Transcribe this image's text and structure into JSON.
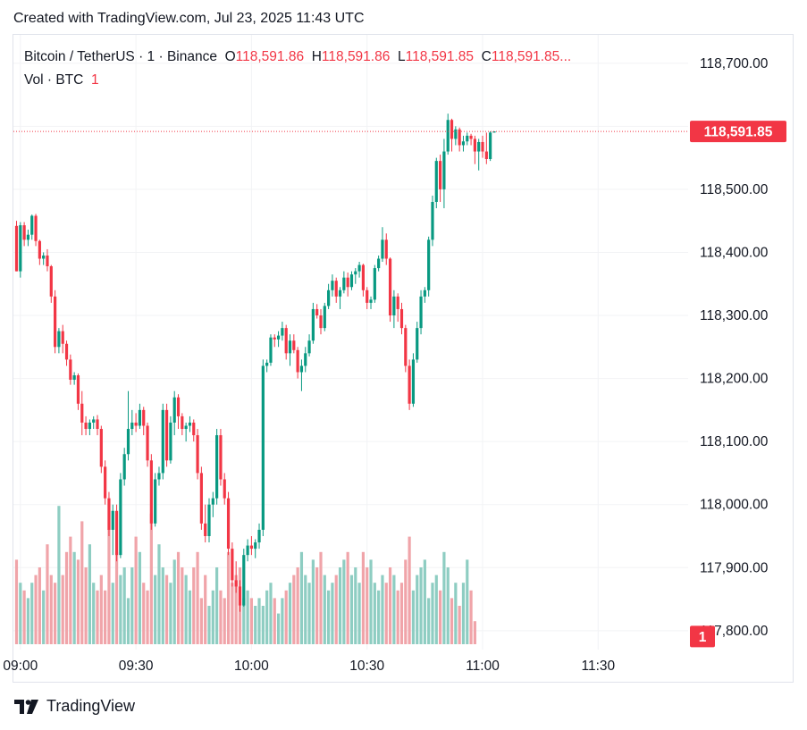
{
  "header": {
    "created_text": "Created with TradingView.com, Jul 23, 2025 11:43 UTC"
  },
  "legend": {
    "symbol": "Bitcoin / TetherUS · 1 · Binance",
    "o_label": "O",
    "o_value": "118,591.86",
    "h_label": "H",
    "h_value": "118,591.86",
    "l_label": "L",
    "l_value": "118,591.85",
    "c_label": "C",
    "c_value": "118,591.85...",
    "vol_label": "Vol · BTC",
    "vol_value": "1"
  },
  "footer": {
    "brand": "TradingView",
    "logo_icon": "tradingview-logo-icon"
  },
  "colors": {
    "up": "#089981",
    "down": "#f23645",
    "up_volume": "#8ecdc2",
    "down_volume": "#f0a4a9",
    "grid": "#f2f3f5"
  },
  "chart_data": {
    "type": "candlestick",
    "price_axis": {
      "ylim": [
        117770,
        118745
      ],
      "ticks": [
        117800,
        117900,
        118000,
        118100,
        118200,
        118300,
        118400,
        118500,
        118600,
        118700
      ],
      "tick_labels": [
        "117,800.00",
        "117,900.00",
        "118,000.00",
        "118,100.00",
        "118,200.00",
        "118,300.00",
        "118,400.00",
        "118,500.00",
        "118,600.00",
        "118,700.00"
      ]
    },
    "time_axis": {
      "start": "08:59",
      "ticks": [
        "09:00",
        "09:30",
        "10:00",
        "10:30",
        "11:00",
        "11:30"
      ]
    },
    "last_price": {
      "value": 118591.85,
      "label": "118,591.85"
    },
    "last_volume": {
      "value": 1,
      "label": "1"
    },
    "candles": [
      [
        118442,
        118450,
        118370,
        118370
      ],
      [
        118370,
        118448,
        118360,
        118443
      ],
      [
        118443,
        118448,
        118410,
        118420
      ],
      [
        118420,
        118436,
        118410,
        118428
      ],
      [
        118428,
        118460,
        118420,
        118458
      ],
      [
        118458,
        118461,
        118410,
        118418
      ],
      [
        118418,
        118420,
        118380,
        118390
      ],
      [
        118390,
        118400,
        118380,
        118395
      ],
      [
        118395,
        118405,
        118370,
        118378
      ],
      [
        118378,
        118380,
        118320,
        118330
      ],
      [
        118330,
        118340,
        118240,
        118250
      ],
      [
        118250,
        118280,
        118240,
        118275
      ],
      [
        118275,
        118285,
        118240,
        118255
      ],
      [
        118255,
        118260,
        118220,
        118230
      ],
      [
        118230,
        118238,
        118190,
        118198
      ],
      [
        118198,
        118210,
        118190,
        118205
      ],
      [
        118205,
        118208,
        118150,
        118160
      ],
      [
        118160,
        118180,
        118110,
        118130
      ],
      [
        118130,
        118140,
        118110,
        118120
      ],
      [
        118120,
        118135,
        118110,
        118130
      ],
      [
        118130,
        118140,
        118120,
        118135
      ],
      [
        118135,
        118142,
        118110,
        118120
      ],
      [
        118120,
        118125,
        118050,
        118060
      ],
      [
        118060,
        118070,
        118000,
        118010
      ],
      [
        118010,
        118020,
        117950,
        117960
      ],
      [
        117960,
        118000,
        117920,
        117990
      ],
      [
        117990,
        118000,
        117910,
        117920
      ],
      [
        117920,
        118050,
        117915,
        118040
      ],
      [
        118040,
        118090,
        118030,
        118080
      ],
      [
        118080,
        118180,
        118070,
        118120
      ],
      [
        118120,
        118150,
        118110,
        118130
      ],
      [
        118130,
        118145,
        118115,
        118125
      ],
      [
        118125,
        118160,
        118120,
        118150
      ],
      [
        118150,
        118155,
        118110,
        118125
      ],
      [
        118125,
        118130,
        118060,
        118070
      ],
      [
        118070,
        118080,
        117960,
        117970
      ],
      [
        117970,
        118050,
        117965,
        118040
      ],
      [
        118040,
        118060,
        118030,
        118050
      ],
      [
        118050,
        118160,
        118040,
        118150
      ],
      [
        118150,
        118160,
        118060,
        118070
      ],
      [
        118070,
        118140,
        118065,
        118130
      ],
      [
        118130,
        118180,
        118110,
        118170
      ],
      [
        118170,
        118175,
        118120,
        118140
      ],
      [
        118140,
        118145,
        118110,
        118120
      ],
      [
        118120,
        118130,
        118100,
        118125
      ],
      [
        118125,
        118140,
        118115,
        118130
      ],
      [
        118130,
        118135,
        118100,
        118110
      ],
      [
        118110,
        118120,
        118040,
        118050
      ],
      [
        118050,
        118060,
        117960,
        117970
      ],
      [
        117970,
        118000,
        117940,
        117950
      ],
      [
        117950,
        118010,
        117940,
        118000
      ],
      [
        118000,
        118020,
        117980,
        118010
      ],
      [
        118010,
        118120,
        118000,
        118110
      ],
      [
        118110,
        118120,
        118030,
        118040
      ],
      [
        118040,
        118050,
        118000,
        118010
      ],
      [
        118010,
        118020,
        117920,
        117930
      ],
      [
        117930,
        117940,
        117870,
        117880
      ],
      [
        117880,
        117910,
        117860,
        117870
      ],
      [
        117870,
        117880,
        117830,
        117840
      ],
      [
        117840,
        117930,
        117838,
        117920
      ],
      [
        117920,
        117945,
        117910,
        117935
      ],
      [
        117935,
        117950,
        117920,
        117930
      ],
      [
        117930,
        117945,
        117915,
        117940
      ],
      [
        117940,
        117970,
        117930,
        117960
      ],
      [
        117960,
        118230,
        117950,
        118220
      ],
      [
        118220,
        118230,
        118210,
        118225
      ],
      [
        118225,
        118270,
        118220,
        118265
      ],
      [
        118265,
        118270,
        118250,
        118262
      ],
      [
        118262,
        118275,
        118250,
        118268
      ],
      [
        118268,
        118290,
        118260,
        118280
      ],
      [
        118280,
        118285,
        118230,
        118240
      ],
      [
        118240,
        118270,
        118220,
        118260
      ],
      [
        118260,
        118270,
        118240,
        118245
      ],
      [
        118245,
        118250,
        118200,
        118210
      ],
      [
        118210,
        118230,
        118180,
        118220
      ],
      [
        118220,
        118250,
        118210,
        118240
      ],
      [
        118240,
        118270,
        118235,
        118260
      ],
      [
        118260,
        118320,
        118255,
        118310
      ],
      [
        118310,
        118318,
        118295,
        118300
      ],
      [
        118300,
        118310,
        118270,
        118280
      ],
      [
        118280,
        118320,
        118275,
        118315
      ],
      [
        118315,
        118350,
        118310,
        118340
      ],
      [
        118340,
        118365,
        118330,
        118355
      ],
      [
        118355,
        118360,
        118320,
        118330
      ],
      [
        118330,
        118345,
        118310,
        118340
      ],
      [
        118340,
        118370,
        118335,
        118360
      ],
      [
        118360,
        118368,
        118330,
        118345
      ],
      [
        118345,
        118370,
        118340,
        118365
      ],
      [
        118365,
        118375,
        118350,
        118370
      ],
      [
        118370,
        118385,
        118360,
        118380
      ],
      [
        118380,
        118382,
        118330,
        118340
      ],
      [
        118340,
        118345,
        118310,
        118320
      ],
      [
        118320,
        118330,
        118310,
        118325
      ],
      [
        118325,
        118380,
        118320,
        118375
      ],
      [
        118375,
        118395,
        118370,
        118390
      ],
      [
        118390,
        118440,
        118385,
        118420
      ],
      [
        118420,
        118430,
        118380,
        118390
      ],
      [
        118390,
        118392,
        118290,
        118300
      ],
      [
        118300,
        118340,
        118280,
        118330
      ],
      [
        118330,
        118335,
        118290,
        118310
      ],
      [
        118310,
        118320,
        118270,
        118280
      ],
      [
        118280,
        118285,
        118210,
        118220
      ],
      [
        118220,
        118230,
        118150,
        118160
      ],
      [
        118160,
        118240,
        118155,
        118230
      ],
      [
        118230,
        118290,
        118225,
        118280
      ],
      [
        118280,
        118340,
        118270,
        118330
      ],
      [
        118330,
        118345,
        118320,
        118340
      ],
      [
        118340,
        118425,
        118330,
        118420
      ],
      [
        118420,
        118490,
        118410,
        118480
      ],
      [
        118480,
        118550,
        118470,
        118545
      ],
      [
        118545,
        118555,
        118480,
        118500
      ],
      [
        118500,
        118580,
        118470,
        118560
      ],
      [
        118560,
        118620,
        118555,
        118610
      ],
      [
        118610,
        118612,
        118560,
        118580
      ],
      [
        118580,
        118600,
        118570,
        118595
      ],
      [
        118595,
        118598,
        118560,
        118570
      ],
      [
        118570,
        118585,
        118560,
        118576
      ],
      [
        118576,
        118590,
        118570,
        118585
      ],
      [
        118585,
        118588,
        118570,
        118580
      ],
      [
        118580,
        118585,
        118540,
        118560
      ],
      [
        118560,
        118580,
        118530,
        118575
      ],
      [
        118575,
        118585,
        118550,
        118560
      ],
      [
        118560,
        118590,
        118540,
        118548
      ],
      [
        118548,
        118592,
        118545,
        118590
      ],
      [
        118590,
        118592,
        118590,
        118592
      ]
    ],
    "volumes": [
      11,
      8,
      7,
      6,
      8,
      9,
      10,
      7,
      13,
      9,
      8,
      18,
      9,
      12,
      14,
      12,
      11,
      16,
      10,
      13,
      8,
      7,
      9,
      7,
      15,
      8,
      12,
      9,
      10,
      6,
      10,
      14,
      12,
      8,
      7,
      17,
      9,
      13,
      10,
      9,
      8,
      11,
      12,
      10,
      9,
      7,
      10,
      12,
      6,
      9,
      5,
      7,
      10,
      7,
      6,
      12,
      8,
      9,
      10,
      6,
      7,
      6,
      5,
      6,
      5,
      7,
      8,
      6,
      4,
      6,
      7,
      8,
      9,
      10,
      12,
      9,
      8,
      11,
      10,
      12,
      9,
      7,
      8,
      9,
      10,
      11,
      12,
      9,
      10,
      8,
      12,
      10,
      11,
      8,
      7,
      9,
      8,
      10,
      9,
      7,
      8,
      11,
      14,
      7,
      9,
      10,
      11,
      6,
      8,
      9,
      7,
      12,
      10,
      6,
      8,
      5,
      8,
      11,
      7,
      3
    ]
  }
}
